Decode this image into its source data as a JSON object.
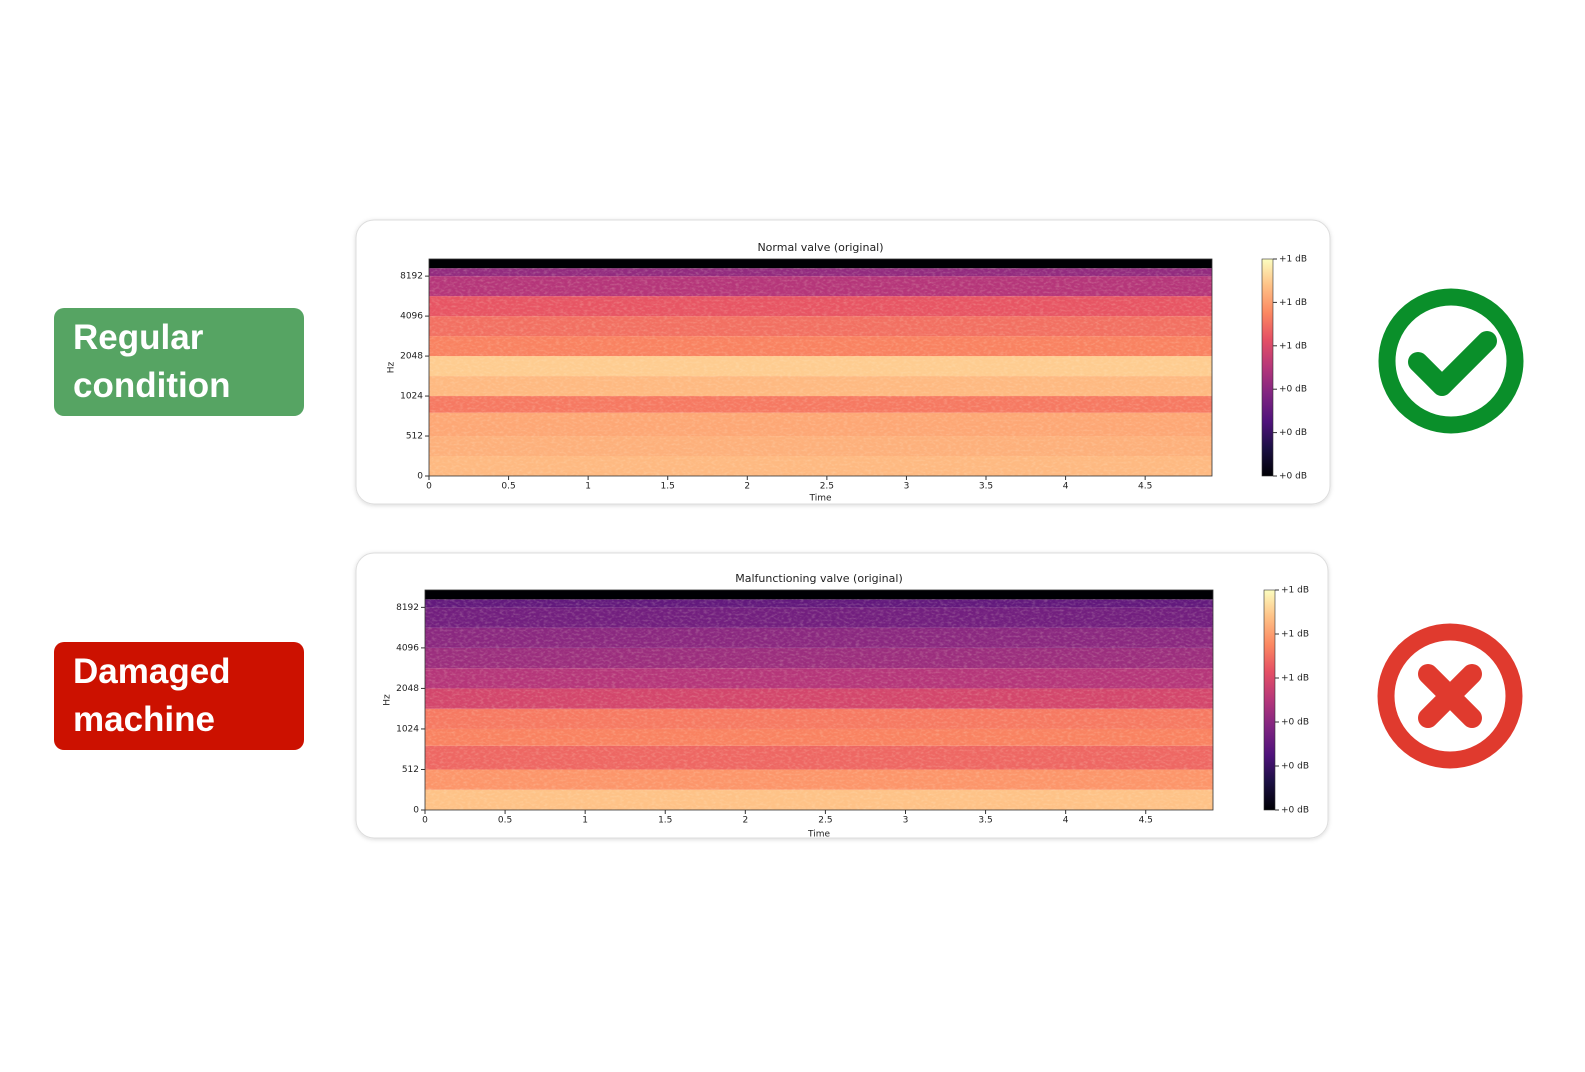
{
  "labels": [
    "Regular condition",
    "Damaged machine"
  ],
  "chart_data": [
    {
      "type": "heatmap",
      "title": "Normal valve (original)",
      "xlabel": "Time",
      "ylabel": "Hz",
      "colormap": "magma",
      "yscale": "symlog",
      "linthresh": 512,
      "xlim": [
        0,
        4.92
      ],
      "xticks": [
        0,
        0.5,
        1,
        1.5,
        2,
        2.5,
        3,
        3.5,
        4,
        4.5
      ],
      "ylim": [
        0,
        11025
      ],
      "yticks": [
        0,
        512,
        1024,
        2048,
        4096,
        8192
      ],
      "y_edges": [
        0,
        256,
        512,
        768,
        1024,
        1448,
        2048,
        2896,
        4096,
        5793,
        8192,
        9400,
        11025
      ],
      "z": [
        0.86,
        0.84,
        0.82,
        0.72,
        0.86,
        0.9,
        0.74,
        0.7,
        0.64,
        0.5,
        0.42,
        0
      ],
      "clim": [
        0,
        1
      ],
      "cticks": [
        {
          "value": 0,
          "label": "+0 dB"
        },
        {
          "value": 0.2,
          "label": "+0 dB"
        },
        {
          "value": 0.4,
          "label": "+0 dB"
        },
        {
          "value": 0.6,
          "label": "+1 dB"
        },
        {
          "value": 0.8,
          "label": "+1 dB"
        },
        {
          "value": 1,
          "label": "+1 dB"
        }
      ]
    },
    {
      "type": "heatmap",
      "title": "Malfunctioning valve (original)",
      "xlabel": "Time",
      "ylabel": "Hz",
      "colormap": "magma",
      "yscale": "symlog",
      "linthresh": 512,
      "xlim": [
        0,
        4.92
      ],
      "xticks": [
        0,
        0.5,
        1,
        1.5,
        2,
        2.5,
        3,
        3.5,
        4,
        4.5
      ],
      "ylim": [
        0,
        11025
      ],
      "yticks": [
        0,
        512,
        1024,
        2048,
        4096,
        8192
      ],
      "y_edges": [
        0,
        256,
        512,
        768,
        1024,
        1448,
        2048,
        2896,
        4096,
        5793,
        8192,
        9400,
        11025
      ],
      "z": [
        0.88,
        0.78,
        0.68,
        0.74,
        0.72,
        0.58,
        0.5,
        0.44,
        0.4,
        0.34,
        0.3,
        0
      ],
      "clim": [
        0,
        1
      ],
      "cticks": [
        {
          "value": 0,
          "label": "+0 dB"
        },
        {
          "value": 0.2,
          "label": "+0 dB"
        },
        {
          "value": 0.4,
          "label": "+0 dB"
        },
        {
          "value": 0.6,
          "label": "+1 dB"
        },
        {
          "value": 0.8,
          "label": "+1 dB"
        },
        {
          "value": 1,
          "label": "+1 dB"
        }
      ]
    }
  ]
}
